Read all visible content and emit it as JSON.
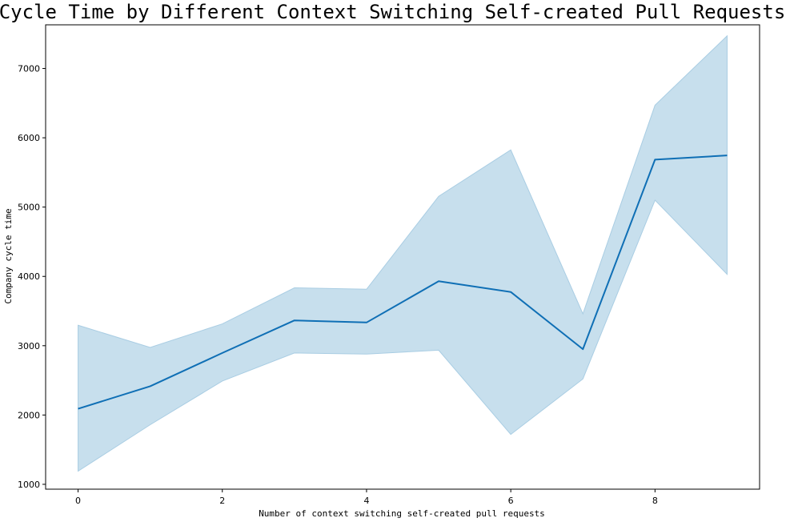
{
  "chart_data": {
    "type": "line",
    "title": "Cycle Time by Different Context Switching Self-created Pull Requests",
    "xlabel": "Number of context switching self-created pull requests",
    "ylabel": "Company cycle time",
    "xlim": [
      -0.45,
      9.45
    ],
    "ylim": [
      930,
      7630
    ],
    "x_ticks": [
      0,
      2,
      4,
      6,
      8
    ],
    "y_ticks": [
      1000,
      2000,
      3000,
      4000,
      5000,
      6000,
      7000
    ],
    "grid": false,
    "legend": "none",
    "colors": {
      "line": "#0f6fb5",
      "band": "#c7dfed",
      "band_edge": "#a9cde3"
    },
    "series": [
      {
        "x": [
          0,
          1,
          2,
          3,
          4,
          5,
          6,
          7,
          8,
          9
        ],
        "values": [
          2090,
          2415,
          2895,
          3365,
          3335,
          3930,
          3775,
          2950,
          5685,
          5745
        ],
        "ci_lower": [
          1190,
          1860,
          2490,
          2895,
          2880,
          2935,
          1720,
          2520,
          5100,
          4030
        ],
        "ci_upper": [
          3295,
          2975,
          3315,
          3835,
          3815,
          5155,
          5825,
          3460,
          6470,
          7470
        ]
      }
    ]
  }
}
